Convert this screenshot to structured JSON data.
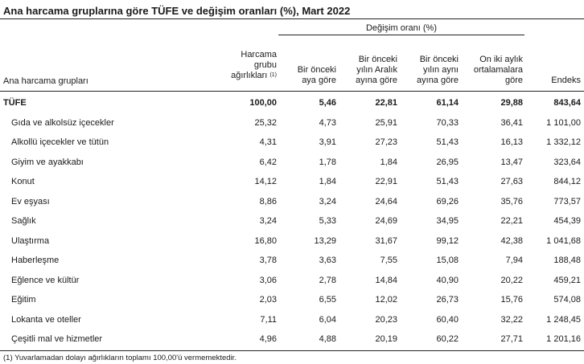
{
  "title": "Ana harcama gruplarına göre TÜFE ve değişim oranları (%), Mart 2022",
  "group_header": "Değişim oranı (%)",
  "headers": {
    "first": "Ana harcama grupları",
    "weight": [
      "Harcama",
      "grubu",
      "ağırlıkları"
    ],
    "weight_note": "(1)",
    "monthly": [
      "Bir önceki",
      "aya göre"
    ],
    "december": [
      "Bir önceki",
      "yılın Aralık",
      "ayına göre"
    ],
    "same_month": [
      "Bir önceki",
      "yılın aynı",
      "ayına göre"
    ],
    "avg12": [
      "On iki aylık",
      "ortalamalara",
      "göre"
    ],
    "index": [
      "Endeks"
    ]
  },
  "rows": [
    {
      "name": "TÜFE",
      "weight": "100,00",
      "monthly": "5,46",
      "december": "22,81",
      "same_month": "61,14",
      "avg12": "29,88",
      "index": "843,64"
    },
    {
      "name": "Gıda ve alkolsüz içecekler",
      "weight": "25,32",
      "monthly": "4,73",
      "december": "25,91",
      "same_month": "70,33",
      "avg12": "36,41",
      "index": "1 101,00"
    },
    {
      "name": "Alkollü içecekler ve tütün",
      "weight": "4,31",
      "monthly": "3,91",
      "december": "27,23",
      "same_month": "51,43",
      "avg12": "16,13",
      "index": "1 332,12"
    },
    {
      "name": "Giyim ve ayakkabı",
      "weight": "6,42",
      "monthly": "1,78",
      "december": "1,84",
      "same_month": "26,95",
      "avg12": "13,47",
      "index": "323,64"
    },
    {
      "name": "Konut",
      "weight": "14,12",
      "monthly": "1,84",
      "december": "22,91",
      "same_month": "51,43",
      "avg12": "27,63",
      "index": "844,12"
    },
    {
      "name": "Ev eşyası",
      "weight": "8,86",
      "monthly": "3,24",
      "december": "24,64",
      "same_month": "69,26",
      "avg12": "35,76",
      "index": "773,57"
    },
    {
      "name": "Sağlık",
      "weight": "3,24",
      "monthly": "5,33",
      "december": "24,69",
      "same_month": "34,95",
      "avg12": "22,21",
      "index": "454,39"
    },
    {
      "name": "Ulaştırma",
      "weight": "16,80",
      "monthly": "13,29",
      "december": "31,67",
      "same_month": "99,12",
      "avg12": "42,38",
      "index": "1 041,68"
    },
    {
      "name": "Haberleşme",
      "weight": "3,78",
      "monthly": "3,63",
      "december": "7,55",
      "same_month": "15,08",
      "avg12": "7,94",
      "index": "188,48"
    },
    {
      "name": "Eğlence ve kültür",
      "weight": "3,06",
      "monthly": "2,78",
      "december": "14,84",
      "same_month": "40,90",
      "avg12": "20,22",
      "index": "459,21"
    },
    {
      "name": "Eğitim",
      "weight": "2,03",
      "monthly": "6,55",
      "december": "12,02",
      "same_month": "26,73",
      "avg12": "15,76",
      "index": "574,08"
    },
    {
      "name": "Lokanta ve oteller",
      "weight": "7,11",
      "monthly": "6,04",
      "december": "20,23",
      "same_month": "60,40",
      "avg12": "32,22",
      "index": "1 248,45"
    },
    {
      "name": "Çeşitli mal ve hizmetler",
      "weight": "4,96",
      "monthly": "4,88",
      "december": "20,19",
      "same_month": "60,22",
      "avg12": "27,71",
      "index": "1 201,16"
    }
  ],
  "footnote": "(1) Yuvarlamadan dolayı ağırlıkların toplamı 100,00'ü vermemektedir."
}
